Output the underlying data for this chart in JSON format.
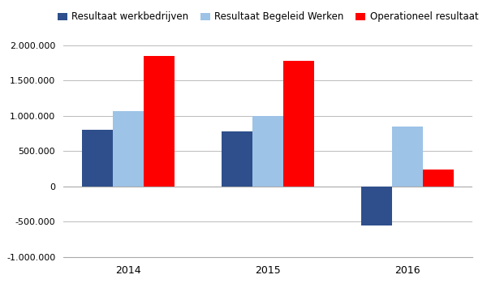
{
  "categories": [
    "2014",
    "2015",
    "2016"
  ],
  "series": [
    {
      "label": "Resultaat werkbedrijven",
      "color": "#2E4F8C",
      "values": [
        800000,
        780000,
        -550000
      ]
    },
    {
      "label": "Resultaat Begeleid Werken",
      "color": "#9DC3E6",
      "values": [
        1070000,
        1000000,
        850000
      ]
    },
    {
      "label": "Operationeel resultaat",
      "color": "#FF0000",
      "values": [
        1850000,
        1775000,
        241200
      ]
    }
  ],
  "ylim": [
    -1000000,
    2100000
  ],
  "yticks": [
    -1000000,
    -500000,
    0,
    500000,
    1000000,
    1500000,
    2000000
  ],
  "bar_width": 0.22,
  "background_color": "#FFFFFF",
  "grid_color": "#BBBBBB",
  "legend_fontsize": 8.5
}
